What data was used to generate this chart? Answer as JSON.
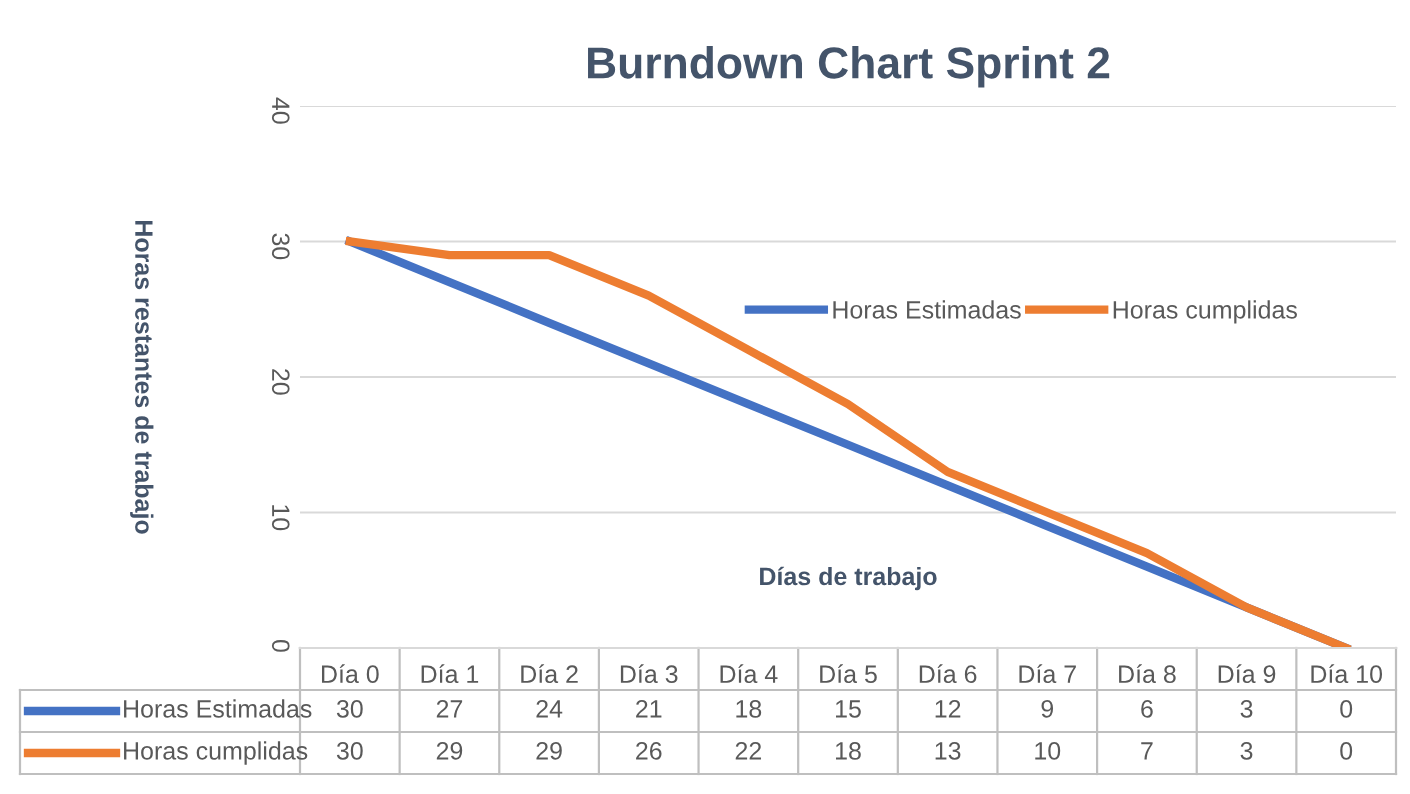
{
  "chart_data": {
    "type": "line",
    "title": "Burndown Chart Sprint 2",
    "xlabel": "Días de trabajo",
    "ylabel": "Horas restantes de trabajo",
    "categories": [
      "Día 0",
      "Día 1",
      "Día 2",
      "Día 3",
      "Día 4",
      "Día 5",
      "Día 6",
      "Día 7",
      "Día 8",
      "Día 9",
      "Día 10"
    ],
    "series": [
      {
        "name": "Horas Estimadas",
        "color": "#4472c4",
        "values": [
          30,
          27,
          24,
          21,
          18,
          15,
          12,
          9,
          6,
          3,
          0
        ]
      },
      {
        "name": "Horas cumplidas",
        "color": "#ed7d31",
        "values": [
          30,
          29,
          29,
          26,
          22,
          18,
          13,
          10,
          7,
          3,
          0
        ]
      }
    ],
    "ylim": [
      0,
      40
    ],
    "yticks": [
      0,
      10,
      20,
      30,
      40
    ],
    "grid": "y",
    "legend": "right",
    "data_labels": true,
    "marker": "none",
    "line_style": "solid"
  }
}
